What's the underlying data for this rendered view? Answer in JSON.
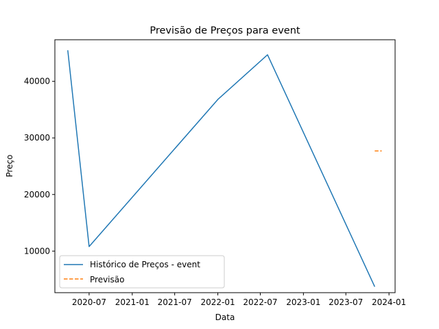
{
  "chart_data": {
    "type": "line",
    "title": "Previsão de Preços para event",
    "xlabel": "Data",
    "ylabel": "Preço",
    "x_ticks": [
      "2020-07",
      "2021-01",
      "2021-07",
      "2022-01",
      "2022-07",
      "2023-01",
      "2023-07",
      "2024-01"
    ],
    "y_ticks": [
      10000,
      20000,
      30000,
      40000
    ],
    "y_tick_labels": [
      "10000",
      "20000",
      "30000",
      "40000"
    ],
    "xlim": [
      "2020-02-06",
      "2024-01-27"
    ],
    "ylim": [
      2650,
      47350
    ],
    "grid": false,
    "legend_position": "lower-left",
    "series": [
      {
        "name": "Histórico de Preços - event",
        "style": "solid",
        "color": "#1f77b4",
        "points": [
          {
            "x": "2020-04-01",
            "y": 45500
          },
          {
            "x": "2020-07-01",
            "y": 10800
          },
          {
            "x": "2022-01-01",
            "y": 36800
          },
          {
            "x": "2022-08-01",
            "y": 44700
          },
          {
            "x": "2023-11-01",
            "y": 3700
          }
        ]
      },
      {
        "name": "Previsão",
        "style": "dashed",
        "color": "#ff7f0e",
        "points": [
          {
            "x": "2023-11-01",
            "y": 27700
          },
          {
            "x": "2023-12-01",
            "y": 27700
          }
        ]
      }
    ]
  }
}
